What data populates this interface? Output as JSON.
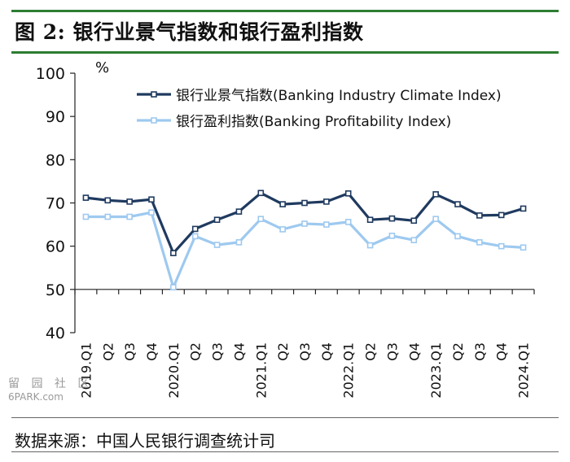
{
  "figure": {
    "title": "图 2:  银行业景气指数和银行盈利指数",
    "source": "数据来源：中国人民银行调查统计司",
    "watermark_text": "留 园 社 区",
    "watermark_site": "6PARK.com"
  },
  "chart_data": {
    "type": "line",
    "y_unit": "%",
    "ylim": [
      40,
      100
    ],
    "yticks": [
      40,
      50,
      60,
      70,
      80,
      90,
      100
    ],
    "grid": false,
    "legend_position": "top-center",
    "categories": [
      "2019.Q1",
      "Q2",
      "Q3",
      "Q4",
      "2020.Q1",
      "Q2",
      "Q3",
      "Q4",
      "2021.Q1",
      "Q2",
      "Q3",
      "Q4",
      "2022.Q1",
      "Q2",
      "Q3",
      "Q4",
      "2023.Q1",
      "Q2",
      "Q3",
      "Q4",
      "2024.Q1"
    ],
    "series": [
      {
        "name": "银行业景气指数(Banking Industry Climate Index)",
        "color": "#1f3a5f",
        "marker": "square-hollow",
        "values": [
          71.2,
          70.6,
          70.3,
          70.8,
          58.4,
          64.0,
          66.1,
          68.0,
          72.3,
          69.7,
          70.0,
          70.3,
          72.2,
          66.1,
          66.4,
          65.9,
          72.0,
          69.7,
          67.1,
          67.2,
          68.7
        ]
      },
      {
        "name": "银行盈利指数(Banking Profitability Index)",
        "color": "#9ec9ef",
        "marker": "square-hollow",
        "values": [
          66.8,
          66.8,
          66.8,
          67.8,
          50.5,
          62.3,
          60.3,
          60.9,
          66.3,
          63.9,
          65.2,
          65.0,
          65.6,
          60.2,
          62.4,
          61.4,
          66.3,
          62.3,
          60.9,
          60.0,
          59.7
        ]
      }
    ]
  }
}
